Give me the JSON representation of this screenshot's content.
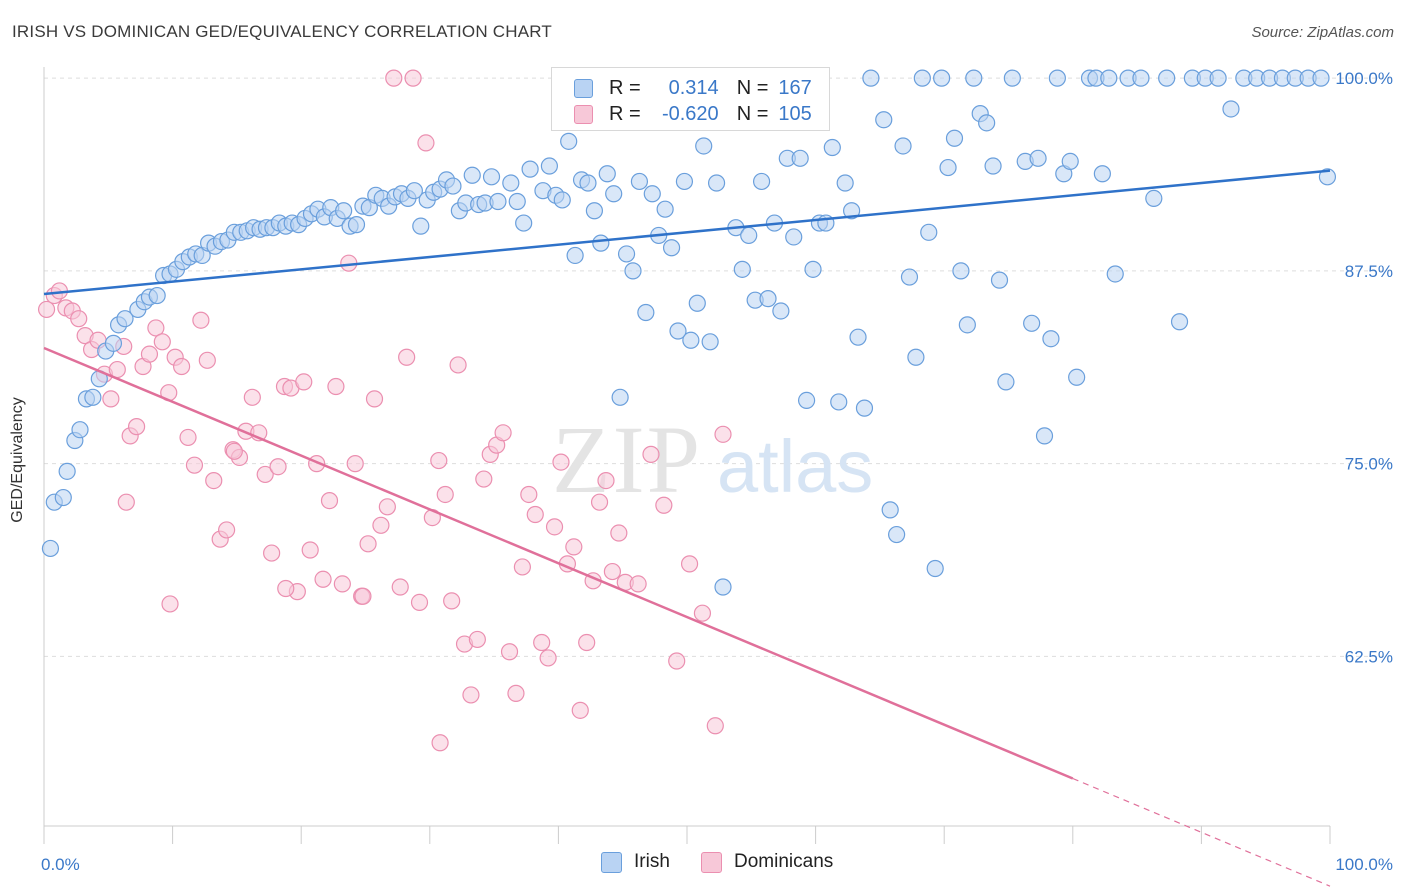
{
  "title": "IRISH VS DOMINICAN GED/EQUIVALENCY CORRELATION CHART",
  "source": "Source: ZipAtlas.com",
  "watermark": {
    "zip": "ZIP",
    "atlas": "atlas"
  },
  "colors": {
    "irish_fill": "#b9d3f3",
    "irish_stroke": "#6a9fdc",
    "irish_line": "#2f72c9",
    "dom_fill": "#f7c8d8",
    "dom_stroke": "#eb8fb0",
    "dom_line": "#e0709a",
    "tick_label": "#3a78c8",
    "grid": "#dddddd"
  },
  "legend": {
    "irish": {
      "r_label": "R =",
      "r_value": "0.314",
      "n_label": "N =",
      "n_value": "167"
    },
    "dominicans": {
      "r_label": "R =",
      "r_value": "-0.620",
      "n_label": "N =",
      "n_value": "105"
    }
  },
  "chart_data": {
    "type": "scatter",
    "title": "IRISH VS DOMINICAN GED/EQUIVALENCY CORRELATION CHART",
    "xlabel": "",
    "ylabel": "GED/Equivalency",
    "xlim": [
      0,
      100
    ],
    "ylim": [
      51.5,
      101.5
    ],
    "x_tick_labels": [
      {
        "value": 0,
        "label": "0.0%"
      },
      {
        "value": 100,
        "label": "100.0%"
      }
    ],
    "y_tick_labels": [
      {
        "value": 100,
        "label": "100.0%"
      },
      {
        "value": 87.5,
        "label": "87.5%"
      },
      {
        "value": 75,
        "label": "75.0%"
      },
      {
        "value": 62.5,
        "label": "62.5%"
      }
    ],
    "grid": true,
    "legend_position": "bottom-center",
    "series": [
      {
        "name": "Irish",
        "R": 0.314,
        "N": 167,
        "trend": {
          "x": [
            0,
            100
          ],
          "y": [
            86.0,
            94.0
          ]
        },
        "points": [
          [
            0.5,
            69.5
          ],
          [
            0.8,
            72.5
          ],
          [
            1.5,
            72.8
          ],
          [
            1.8,
            74.5
          ],
          [
            2.4,
            76.5
          ],
          [
            2.8,
            77.2
          ],
          [
            3.3,
            79.2
          ],
          [
            3.8,
            79.3
          ],
          [
            4.3,
            80.5
          ],
          [
            4.8,
            82.3
          ],
          [
            5.4,
            82.8
          ],
          [
            5.8,
            84.0
          ],
          [
            6.3,
            84.4
          ],
          [
            7.3,
            85.0
          ],
          [
            7.8,
            85.5
          ],
          [
            8.2,
            85.8
          ],
          [
            8.8,
            85.9
          ],
          [
            9.3,
            87.2
          ],
          [
            9.8,
            87.3
          ],
          [
            10.3,
            87.6
          ],
          [
            10.8,
            88.1
          ],
          [
            11.3,
            88.4
          ],
          [
            11.8,
            88.6
          ],
          [
            12.3,
            88.5
          ],
          [
            12.8,
            89.3
          ],
          [
            13.3,
            89.1
          ],
          [
            13.8,
            89.4
          ],
          [
            14.3,
            89.5
          ],
          [
            14.8,
            90.0
          ],
          [
            15.3,
            90.0
          ],
          [
            15.8,
            90.1
          ],
          [
            16.3,
            90.3
          ],
          [
            16.8,
            90.2
          ],
          [
            17.3,
            90.3
          ],
          [
            17.8,
            90.3
          ],
          [
            18.3,
            90.6
          ],
          [
            18.8,
            90.4
          ],
          [
            19.3,
            90.6
          ],
          [
            19.8,
            90.5
          ],
          [
            20.3,
            90.9
          ],
          [
            20.8,
            91.2
          ],
          [
            21.3,
            91.5
          ],
          [
            21.8,
            91.0
          ],
          [
            22.3,
            91.6
          ],
          [
            22.8,
            90.9
          ],
          [
            23.3,
            91.4
          ],
          [
            23.8,
            90.4
          ],
          [
            24.3,
            90.5
          ],
          [
            24.8,
            91.7
          ],
          [
            25.3,
            91.6
          ],
          [
            25.8,
            92.4
          ],
          [
            26.3,
            92.2
          ],
          [
            26.8,
            91.7
          ],
          [
            27.3,
            92.3
          ],
          [
            27.8,
            92.5
          ],
          [
            28.3,
            92.2
          ],
          [
            28.8,
            92.7
          ],
          [
            29.3,
            90.4
          ],
          [
            29.8,
            92.1
          ],
          [
            30.3,
            92.6
          ],
          [
            30.8,
            92.8
          ],
          [
            31.3,
            93.4
          ],
          [
            31.8,
            93.0
          ],
          [
            32.3,
            91.4
          ],
          [
            32.8,
            91.9
          ],
          [
            33.3,
            93.7
          ],
          [
            33.8,
            91.8
          ],
          [
            34.3,
            91.9
          ],
          [
            34.8,
            93.6
          ],
          [
            35.3,
            92.0
          ],
          [
            36.3,
            93.2
          ],
          [
            36.8,
            92.0
          ],
          [
            37.3,
            90.6
          ],
          [
            37.8,
            94.1
          ],
          [
            38.8,
            92.7
          ],
          [
            39.3,
            94.3
          ],
          [
            39.8,
            92.4
          ],
          [
            40.3,
            92.1
          ],
          [
            40.8,
            95.9
          ],
          [
            41.3,
            88.5
          ],
          [
            41.8,
            93.4
          ],
          [
            42.3,
            93.2
          ],
          [
            42.8,
            91.4
          ],
          [
            43.3,
            89.3
          ],
          [
            43.8,
            93.8
          ],
          [
            44.3,
            92.5
          ],
          [
            44.8,
            79.3
          ],
          [
            45.3,
            88.6
          ],
          [
            45.8,
            87.5
          ],
          [
            46.3,
            93.3
          ],
          [
            46.8,
            84.8
          ],
          [
            47.3,
            92.5
          ],
          [
            47.8,
            89.8
          ],
          [
            48.3,
            91.5
          ],
          [
            48.8,
            89.0
          ],
          [
            49.3,
            83.6
          ],
          [
            49.8,
            93.3
          ],
          [
            50.3,
            83.0
          ],
          [
            50.8,
            85.4
          ],
          [
            51.3,
            95.6
          ],
          [
            51.8,
            82.9
          ],
          [
            52.3,
            93.2
          ],
          [
            52.8,
            67.0
          ],
          [
            53.8,
            90.3
          ],
          [
            54.3,
            87.6
          ],
          [
            54.8,
            89.8
          ],
          [
            55.3,
            85.6
          ],
          [
            55.8,
            93.3
          ],
          [
            56.3,
            85.7
          ],
          [
            56.8,
            90.6
          ],
          [
            57.3,
            84.9
          ],
          [
            57.8,
            94.8
          ],
          [
            58.3,
            89.7
          ],
          [
            58.8,
            94.8
          ],
          [
            59.3,
            79.1
          ],
          [
            59.8,
            87.6
          ],
          [
            60.3,
            90.6
          ],
          [
            60.8,
            90.6
          ],
          [
            61.3,
            95.5
          ],
          [
            61.8,
            79.0
          ],
          [
            62.3,
            93.2
          ],
          [
            62.8,
            91.4
          ],
          [
            63.3,
            83.2
          ],
          [
            63.8,
            78.6
          ],
          [
            64.3,
            100.0
          ],
          [
            65.3,
            97.3
          ],
          [
            65.8,
            72.0
          ],
          [
            66.3,
            70.4
          ],
          [
            66.8,
            95.6
          ],
          [
            67.3,
            87.1
          ],
          [
            67.8,
            81.9
          ],
          [
            68.3,
            100.0
          ],
          [
            68.8,
            90.0
          ],
          [
            69.3,
            68.2
          ],
          [
            69.8,
            100.0
          ],
          [
            70.3,
            94.2
          ],
          [
            70.8,
            96.1
          ],
          [
            71.3,
            87.5
          ],
          [
            71.8,
            84.0
          ],
          [
            72.3,
            100.0
          ],
          [
            72.8,
            97.7
          ],
          [
            73.3,
            97.1
          ],
          [
            73.8,
            94.3
          ],
          [
            74.3,
            86.9
          ],
          [
            74.8,
            80.3
          ],
          [
            75.3,
            100.0
          ],
          [
            76.3,
            94.6
          ],
          [
            76.8,
            84.1
          ],
          [
            77.3,
            94.8
          ],
          [
            77.8,
            76.8
          ],
          [
            78.3,
            83.1
          ],
          [
            78.8,
            100.0
          ],
          [
            79.3,
            93.8
          ],
          [
            79.8,
            94.6
          ],
          [
            80.3,
            80.6
          ],
          [
            81.3,
            100.0
          ],
          [
            81.8,
            100.0
          ],
          [
            82.3,
            93.8
          ],
          [
            82.8,
            100.0
          ],
          [
            83.3,
            87.3
          ],
          [
            84.3,
            100.0
          ],
          [
            85.3,
            100.0
          ],
          [
            86.3,
            92.2
          ],
          [
            87.3,
            100.0
          ],
          [
            88.3,
            84.2
          ],
          [
            89.3,
            100.0
          ],
          [
            90.3,
            100.0
          ],
          [
            91.3,
            100.0
          ],
          [
            92.3,
            98.0
          ],
          [
            93.3,
            100.0
          ],
          [
            94.3,
            100.0
          ],
          [
            95.3,
            100.0
          ],
          [
            96.3,
            100.0
          ],
          [
            97.3,
            100.0
          ],
          [
            98.3,
            100.0
          ],
          [
            99.3,
            100.0
          ],
          [
            99.8,
            93.6
          ]
        ]
      },
      {
        "name": "Dominicans",
        "R": -0.62,
        "N": 105,
        "trend": {
          "x": [
            0,
            100
          ],
          "y": [
            82.5,
            47.6
          ],
          "solid_until_x": 80
        },
        "points": [
          [
            0.2,
            85.0
          ],
          [
            0.8,
            85.9
          ],
          [
            1.2,
            86.2
          ],
          [
            1.7,
            85.1
          ],
          [
            2.2,
            84.9
          ],
          [
            2.7,
            84.4
          ],
          [
            3.2,
            83.3
          ],
          [
            3.7,
            82.4
          ],
          [
            4.2,
            83.0
          ],
          [
            4.7,
            80.8
          ],
          [
            5.2,
            79.2
          ],
          [
            5.7,
            81.1
          ],
          [
            6.2,
            82.6
          ],
          [
            6.7,
            76.8
          ],
          [
            7.2,
            77.4
          ],
          [
            7.7,
            81.3
          ],
          [
            8.2,
            82.1
          ],
          [
            8.7,
            83.8
          ],
          [
            9.2,
            82.9
          ],
          [
            9.7,
            79.6
          ],
          [
            10.2,
            81.9
          ],
          [
            10.7,
            81.3
          ],
          [
            11.2,
            76.7
          ],
          [
            11.7,
            74.9
          ],
          [
            12.2,
            84.3
          ],
          [
            12.7,
            81.7
          ],
          [
            13.2,
            73.9
          ],
          [
            13.7,
            70.1
          ],
          [
            14.2,
            70.7
          ],
          [
            14.7,
            75.9
          ],
          [
            15.2,
            75.4
          ],
          [
            15.7,
            77.1
          ],
          [
            16.2,
            79.3
          ],
          [
            16.7,
            77.0
          ],
          [
            17.2,
            74.3
          ],
          [
            17.7,
            69.2
          ],
          [
            18.2,
            74.8
          ],
          [
            18.7,
            80.0
          ],
          [
            19.2,
            79.9
          ],
          [
            19.7,
            66.7
          ],
          [
            20.2,
            80.3
          ],
          [
            20.7,
            69.4
          ],
          [
            21.2,
            75.0
          ],
          [
            21.7,
            67.5
          ],
          [
            22.2,
            72.6
          ],
          [
            22.7,
            80.0
          ],
          [
            23.2,
            67.2
          ],
          [
            23.7,
            88.0
          ],
          [
            24.2,
            75.0
          ],
          [
            24.7,
            66.4
          ],
          [
            25.2,
            69.8
          ],
          [
            25.7,
            79.2
          ],
          [
            26.2,
            71.0
          ],
          [
            26.7,
            72.2
          ],
          [
            27.2,
            100.0
          ],
          [
            27.7,
            67.0
          ],
          [
            28.2,
            81.9
          ],
          [
            28.7,
            100.0
          ],
          [
            29.2,
            66.0
          ],
          [
            29.7,
            95.8
          ],
          [
            30.2,
            71.5
          ],
          [
            30.7,
            75.2
          ],
          [
            31.2,
            73.0
          ],
          [
            31.7,
            66.1
          ],
          [
            32.2,
            81.4
          ],
          [
            32.7,
            63.3
          ],
          [
            33.2,
            60.0
          ],
          [
            33.7,
            63.6
          ],
          [
            34.2,
            74.0
          ],
          [
            34.7,
            75.6
          ],
          [
            35.2,
            76.2
          ],
          [
            35.7,
            77.0
          ],
          [
            36.2,
            62.8
          ],
          [
            36.7,
            60.1
          ],
          [
            37.2,
            68.3
          ],
          [
            37.7,
            73.0
          ],
          [
            38.2,
            71.7
          ],
          [
            38.7,
            63.4
          ],
          [
            39.2,
            62.4
          ],
          [
            39.7,
            70.9
          ],
          [
            40.2,
            75.1
          ],
          [
            40.7,
            68.5
          ],
          [
            41.2,
            69.6
          ],
          [
            41.7,
            59.0
          ],
          [
            42.2,
            63.4
          ],
          [
            42.7,
            67.4
          ],
          [
            43.2,
            72.5
          ],
          [
            43.7,
            73.9
          ],
          [
            44.2,
            68.0
          ],
          [
            44.7,
            70.5
          ],
          [
            45.2,
            67.3
          ],
          [
            46.2,
            67.2
          ],
          [
            47.2,
            75.6
          ],
          [
            48.2,
            72.3
          ],
          [
            49.2,
            62.2
          ],
          [
            50.2,
            68.5
          ],
          [
            51.2,
            65.3
          ],
          [
            52.2,
            58.0
          ],
          [
            30.8,
            56.9
          ],
          [
            24.8,
            66.4
          ],
          [
            18.8,
            66.9
          ],
          [
            14.8,
            75.8
          ],
          [
            9.8,
            65.9
          ],
          [
            6.4,
            72.5
          ],
          [
            52.8,
            76.9
          ]
        ]
      }
    ]
  }
}
